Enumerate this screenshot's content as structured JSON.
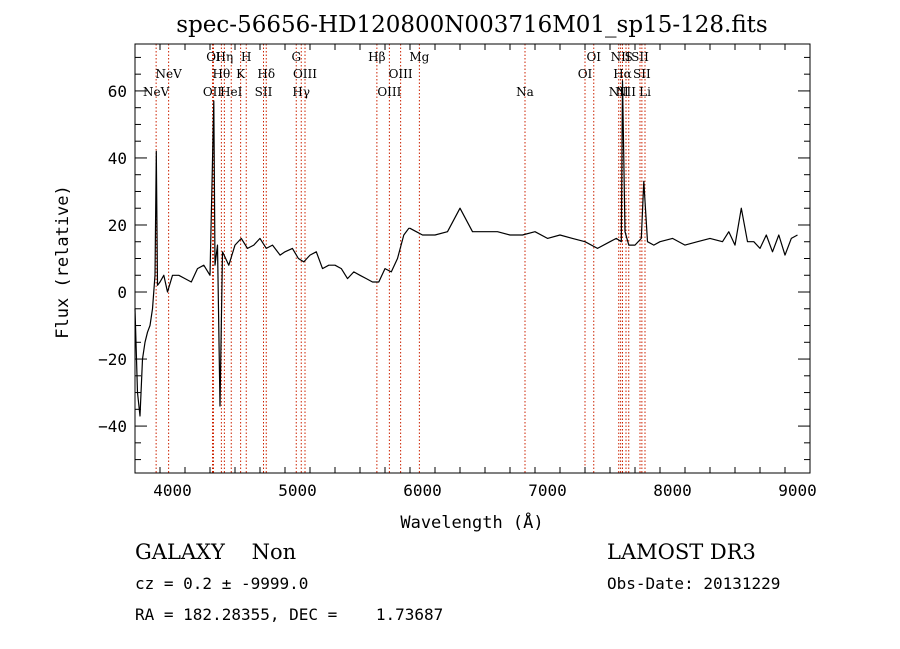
{
  "chart_data": {
    "type": "line",
    "title": "spec-56656-HD120800N003716M01_sp15-128.fits",
    "xlabel": "Wavelength (Å)",
    "ylabel": "Flux (relative)",
    "xlim": [
      3700,
      9100
    ],
    "ylim": [
      -54,
      74
    ],
    "x_ticks": [
      4000,
      5000,
      6000,
      7000,
      8000,
      9000
    ],
    "y_ticks": [
      -40,
      -20,
      0,
      20,
      40,
      60
    ],
    "grid": false,
    "series": [
      {
        "color": "#000000",
        "x": [
          3700,
          3720,
          3740,
          3760,
          3780,
          3800,
          3820,
          3840,
          3860,
          3870,
          3880,
          3900,
          3930,
          3960,
          4000,
          4050,
          4100,
          4150,
          4200,
          4250,
          4300,
          4330,
          4340,
          4360,
          4380,
          4400,
          4450,
          4500,
          4550,
          4600,
          4650,
          4700,
          4750,
          4800,
          4861,
          4900,
          4959,
          5007,
          5050,
          5100,
          5150,
          5200,
          5250,
          5300,
          5350,
          5400,
          5450,
          5500,
          5550,
          5600,
          5650,
          5700,
          5750,
          5800,
          5850,
          5890,
          5900,
          5950,
          6000,
          6100,
          6200,
          6300,
          6400,
          6500,
          6600,
          6700,
          6800,
          6900,
          7000,
          7100,
          7200,
          7300,
          7400,
          7500,
          7550,
          7590,
          7600,
          7620,
          7650,
          7700,
          7750,
          7770,
          7800,
          7850,
          7900,
          8000,
          8100,
          8200,
          8300,
          8400,
          8450,
          8500,
          8550,
          8600,
          8650,
          8700,
          8750,
          8800,
          8850,
          8900,
          8950,
          9000
        ],
        "y": [
          -5,
          -30,
          -37,
          -20,
          -15,
          -12,
          -10,
          -5,
          5,
          42,
          2,
          3,
          5,
          0,
          5,
          5,
          4,
          3,
          7,
          8,
          5,
          57,
          8,
          14,
          -34,
          12,
          8,
          14,
          16,
          13,
          14,
          16,
          13,
          14,
          11,
          12,
          13,
          10,
          9,
          11,
          12,
          7,
          8,
          8,
          7,
          4,
          6,
          5,
          4,
          3,
          3,
          7,
          6,
          10,
          17,
          19,
          19,
          18,
          17,
          17,
          18,
          25,
          18,
          18,
          18,
          17,
          17,
          18,
          16,
          17,
          16,
          15,
          13,
          15,
          16,
          15,
          63,
          18,
          14,
          14,
          16,
          33,
          15,
          14,
          15,
          16,
          14,
          15,
          16,
          15,
          18,
          14,
          25,
          15,
          15,
          13,
          17,
          12,
          17,
          11,
          16,
          17
        ]
      }
    ],
    "line_markers": [
      {
        "x": 3869,
        "label": "NeV",
        "row": 3
      },
      {
        "x": 3969,
        "label": "NeV",
        "row": 2
      },
      {
        "x": 4320,
        "label": "OII",
        "row": 3
      },
      {
        "x": 4328,
        "label": "OI",
        "row": 1
      },
      {
        "x": 4391,
        "label": "Hθ",
        "row": 2
      },
      {
        "x": 4415,
        "label": "Hη",
        "row": 1
      },
      {
        "x": 4470,
        "label": "HeI",
        "row": 3
      },
      {
        "x": 4545,
        "label": "K",
        "row": 2
      },
      {
        "x": 4590,
        "label": "H",
        "row": 1
      },
      {
        "x": 4728,
        "label": "SII",
        "row": 3
      },
      {
        "x": 4750,
        "label": "Hδ",
        "row": 2
      },
      {
        "x": 4990,
        "label": "G",
        "row": 1
      },
      {
        "x": 5030,
        "label": "Hγ",
        "row": 3
      },
      {
        "x": 5060,
        "label": "OIII",
        "row": 2
      },
      {
        "x": 5635,
        "label": "Hβ",
        "row": 1
      },
      {
        "x": 5735,
        "label": "OIII",
        "row": 3
      },
      {
        "x": 5825,
        "label": "OIII",
        "row": 2
      },
      {
        "x": 5975,
        "label": "Mg",
        "row": 1
      },
      {
        "x": 6820,
        "label": "Na",
        "row": 3
      },
      {
        "x": 7300,
        "label": "OI",
        "row": 2
      },
      {
        "x": 7370,
        "label": "OI",
        "row": 1
      },
      {
        "x": 7570,
        "label": "NII",
        "row": 3
      },
      {
        "x": 7585,
        "label": "NII",
        "row": 1
      },
      {
        "x": 7600,
        "label": "Hα",
        "row": 2
      },
      {
        "x": 7628,
        "label": "NII",
        "row": 3
      },
      {
        "x": 7650,
        "label": "S",
        "row": 1
      },
      {
        "x": 7740,
        "label": "SII",
        "row": 1
      },
      {
        "x": 7755,
        "label": "SII",
        "row": 2
      },
      {
        "x": 7780,
        "label": "Li",
        "row": 3
      }
    ],
    "marker_color": "#cc2200"
  },
  "footer": {
    "class_line": "GALAXY    Non",
    "redshift_line": "cz = 0.2 ± -9999.0",
    "coords_line": "RA = 182.28355, DEC =    1.73687",
    "survey": "LAMOST DR3",
    "obs_date": "Obs-Date: 20131229"
  }
}
